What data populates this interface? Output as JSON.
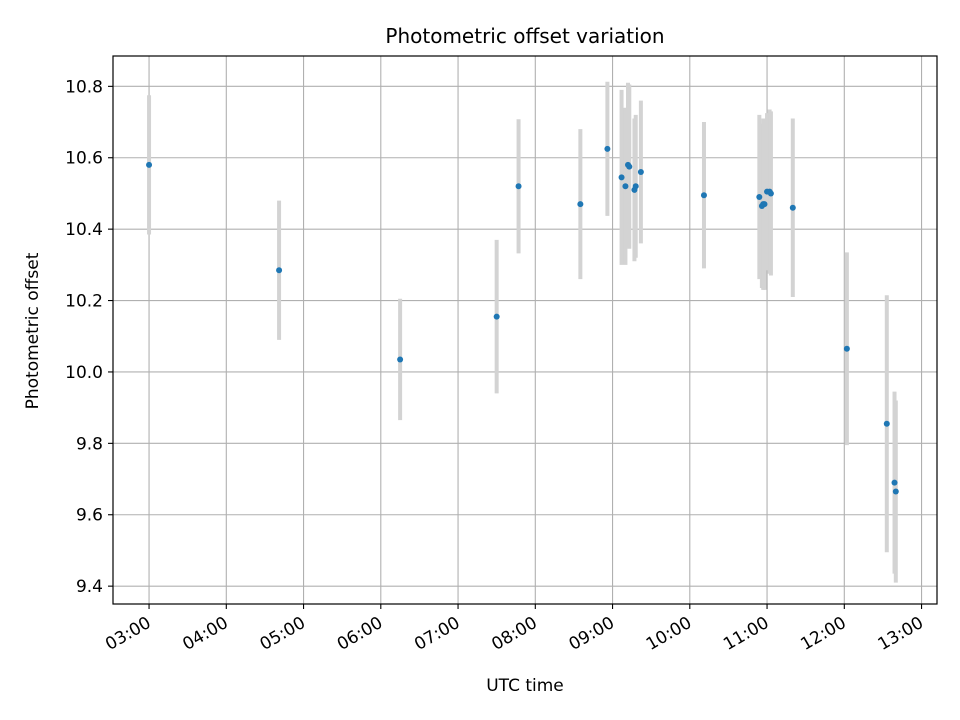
{
  "chart_data": {
    "type": "scatter",
    "title": "Photometric offset variation",
    "xlabel": "UTC time",
    "ylabel": "Photometric offset",
    "x_ticks": [
      "03:00",
      "04:00",
      "05:00",
      "06:00",
      "07:00",
      "08:00",
      "09:00",
      "10:00",
      "11:00",
      "12:00",
      "13:00"
    ],
    "y_ticks": [
      "9.4",
      "9.6",
      "9.8",
      "10.0",
      "10.2",
      "10.4",
      "10.6",
      "10.8"
    ],
    "xlim": [
      "02:32",
      "13:12"
    ],
    "ylim": [
      9.35,
      10.885
    ],
    "grid": true,
    "point_color": "#1f77b4",
    "errorbar_color": "#d3d3d3",
    "points": [
      {
        "time": "03:00",
        "value": 10.58,
        "err": 0.195
      },
      {
        "time": "04:41",
        "value": 10.285,
        "err": 0.195
      },
      {
        "time": "06:15",
        "value": 10.035,
        "err": 0.17
      },
      {
        "time": "07:30",
        "value": 10.155,
        "err": 0.215
      },
      {
        "time": "07:47",
        "value": 10.52,
        "err": 0.188
      },
      {
        "time": "08:35",
        "value": 10.47,
        "err": 0.21
      },
      {
        "time": "08:56",
        "value": 10.625,
        "err": 0.188
      },
      {
        "time": "09:07",
        "value": 10.545,
        "err": 0.245
      },
      {
        "time": "09:10",
        "value": 10.52,
        "err": 0.22
      },
      {
        "time": "09:12",
        "value": 10.58,
        "err": 0.23
      },
      {
        "time": "09:13",
        "value": 10.575,
        "err": 0.23
      },
      {
        "time": "09:17",
        "value": 10.51,
        "err": 0.2
      },
      {
        "time": "09:18",
        "value": 10.52,
        "err": 0.2
      },
      {
        "time": "09:22",
        "value": 10.56,
        "err": 0.2
      },
      {
        "time": "10:11",
        "value": 10.495,
        "err": 0.205
      },
      {
        "time": "10:54",
        "value": 10.49,
        "err": 0.23
      },
      {
        "time": "10:56",
        "value": 10.465,
        "err": 0.23
      },
      {
        "time": "10:57",
        "value": 10.47,
        "err": 0.24
      },
      {
        "time": "10:58",
        "value": 10.47,
        "err": 0.24
      },
      {
        "time": "11:00",
        "value": 10.505,
        "err": 0.22
      },
      {
        "time": "11:02",
        "value": 10.505,
        "err": 0.23
      },
      {
        "time": "11:03",
        "value": 10.5,
        "err": 0.23
      },
      {
        "time": "11:20",
        "value": 10.46,
        "err": 0.25
      },
      {
        "time": "12:02",
        "value": 10.065,
        "err": 0.27
      },
      {
        "time": "12:33",
        "value": 9.855,
        "err": 0.36
      },
      {
        "time": "12:39",
        "value": 9.69,
        "err": 0.255
      },
      {
        "time": "12:40",
        "value": 9.665,
        "err": 0.255
      }
    ]
  }
}
